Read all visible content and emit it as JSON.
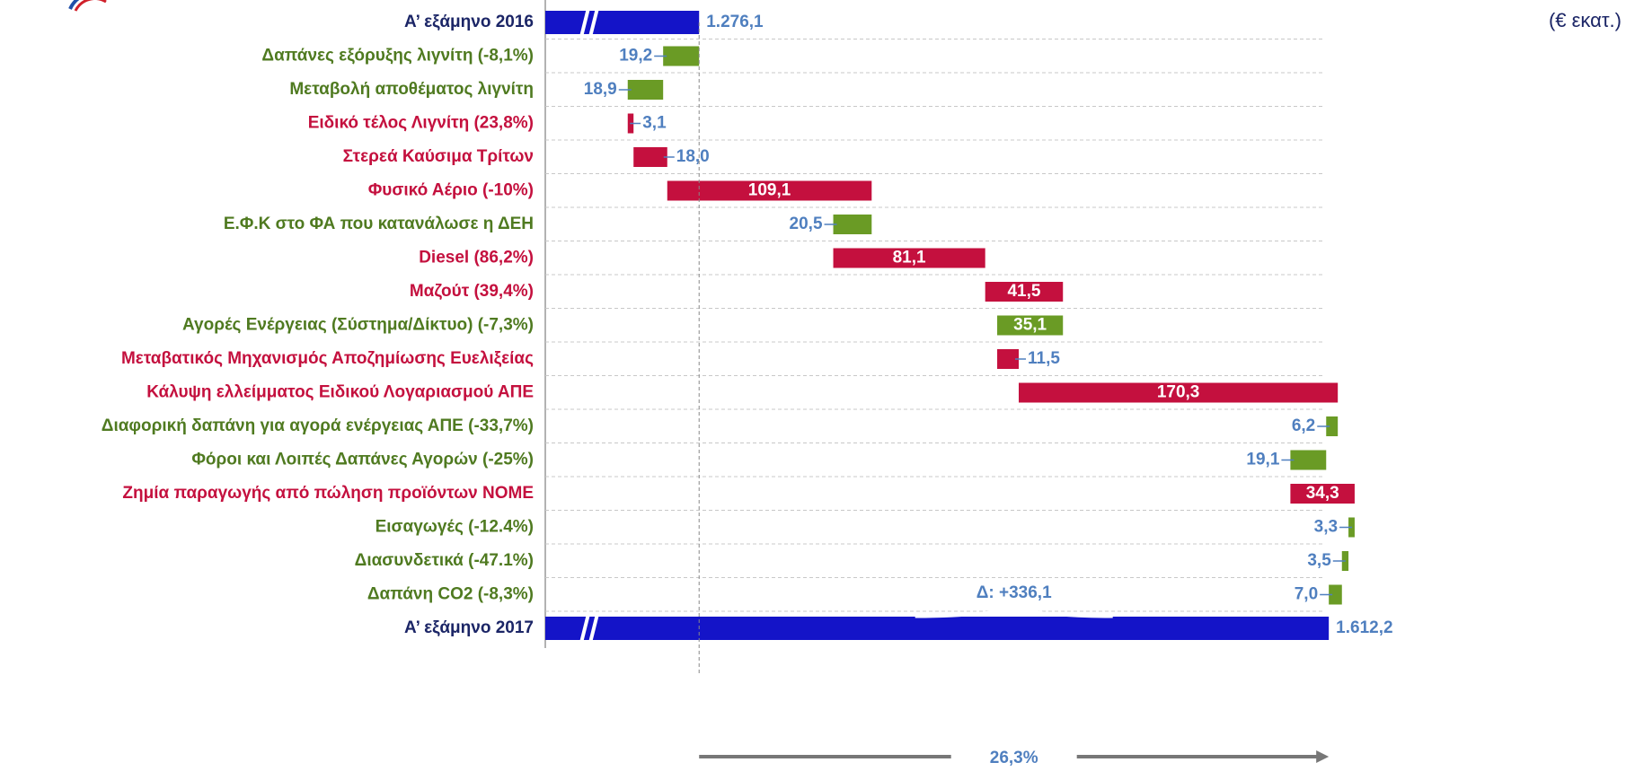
{
  "chart_data": {
    "type": "waterfall",
    "unit_label": "(€ εκατ.)",
    "categories": [
      "Α’ εξάμηνο 2016",
      "Δαπάνες εξόρυξης λιγνίτη (-8,1%)",
      "Μεταβολή αποθέματος λιγνίτη",
      "Ειδικό τέλος Λιγνίτη (23,8%)",
      "Στερεά Καύσιμα Τρίτων",
      "Φυσικό Αέριο (-10%)",
      "Ε.Φ.Κ στο ΦΑ που κατανάλωσε η ΔΕΗ",
      "Diesel (86,2%)",
      "Μαζούτ (39,4%)",
      "Αγορές Ενέργειας (Σύστημα/Δίκτυο) (-7,3%)",
      "Μεταβατικός Μηχανισμός Αποζημίωσης Ευελιξείας",
      "Κάλυψη ελλείμματος Ειδικού Λογαριασμού ΑΠΕ",
      "Διαφορική δαπάνη για αγορά ενέργειας ΑΠΕ (-33,7%)",
      "Φόροι και Λοιπές Δαπάνες Αγορών (-25%)",
      "Ζημία παραγωγής από πώληση προϊόντων ΝΟΜΕ",
      "Εισαγωγές (-12.4%)",
      "Διασυνδετικά (-47.1%)",
      "Δαπάνη CO2 (-8,3%)",
      "Α’ εξάμηνο 2017"
    ],
    "measure": [
      "absolute",
      "relative",
      "relative",
      "relative",
      "relative",
      "relative",
      "relative",
      "relative",
      "relative",
      "relative",
      "relative",
      "relative",
      "relative",
      "relative",
      "relative",
      "relative",
      "relative",
      "relative",
      "absolute"
    ],
    "values": [
      1276.1,
      -19.2,
      -18.9,
      3.1,
      18.0,
      109.1,
      -20.5,
      81.1,
      41.5,
      -35.1,
      11.5,
      170.3,
      -6.2,
      -19.1,
      34.3,
      -3.3,
      -3.5,
      -7.0,
      1612.2
    ],
    "value_labels": [
      "1.276,1",
      "19,2",
      "18,9",
      "3,1",
      "18,0",
      "109,1",
      "20,5",
      "81,1",
      "41,5",
      "35,1",
      "11,5",
      "170,3",
      "6,2",
      "19,1",
      "34,3",
      "3,3",
      "3,5",
      "7,0",
      "1.612,2"
    ],
    "colors": {
      "total": "#1414c8",
      "increase": "#c4103e",
      "decrease": "#6a9b25"
    },
    "text_colors": {
      "total": "#1b2566",
      "increase": "#c4103e",
      "decrease": "#4f7a20"
    },
    "xlim": [
      1194,
      1650
    ],
    "grid": true,
    "annotations": [
      {
        "text": "Δ: +336,1",
        "kind": "delta"
      },
      {
        "text": "26,3%",
        "kind": "percent"
      }
    ]
  }
}
